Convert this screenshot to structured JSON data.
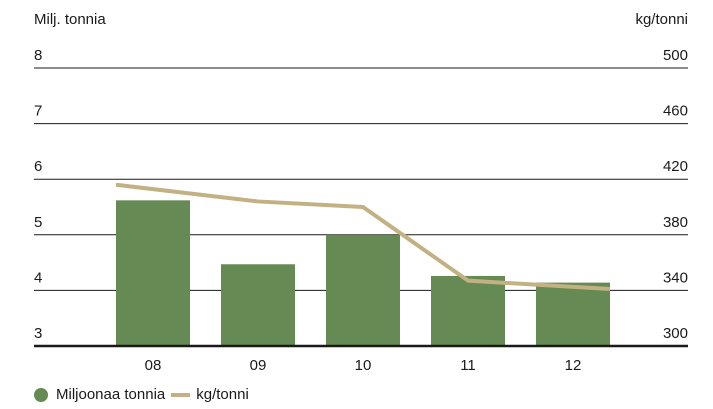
{
  "chart_data": {
    "type": "bar",
    "categories": [
      "08",
      "09",
      "10",
      "11",
      "12"
    ],
    "left_axis_title": "Milj. tonnia",
    "right_axis_title": "kg/tonni",
    "left_ylim": [
      3,
      8
    ],
    "right_ylim": [
      300,
      500
    ],
    "left_ticks": [
      "3",
      "4",
      "5",
      "6",
      "7",
      "8"
    ],
    "right_ticks": [
      "300",
      "340",
      "380",
      "420",
      "460",
      "500"
    ],
    "grid": true,
    "legend_position": "bottom-left",
    "series": [
      {
        "name": "Miljoonaa tonnia",
        "type": "bar",
        "axis": "left",
        "color": "#668a53",
        "values": [
          5.62,
          4.47,
          5.0,
          4.26,
          4.14
        ]
      },
      {
        "name": "kg/tonni",
        "type": "line",
        "axis": "right",
        "color": "#c3b183",
        "values": [
          416,
          404,
          400,
          347,
          341
        ]
      }
    ]
  }
}
